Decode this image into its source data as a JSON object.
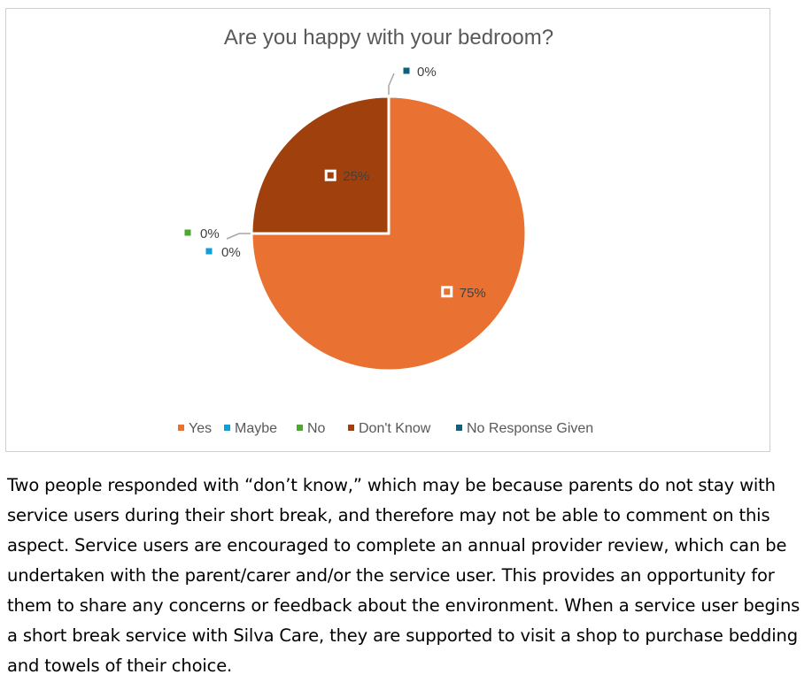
{
  "chart_data": {
    "type": "pie",
    "title": "Are you happy with your bedroom?",
    "categories": [
      "Yes",
      "Maybe",
      "No",
      "Don't Know",
      "No Response Given"
    ],
    "values": [
      75,
      0,
      0,
      25,
      0
    ],
    "labels": [
      "75%",
      "0%",
      "0%",
      "25%",
      "0%"
    ],
    "colors": [
      "#E97132",
      "#0F9ED5",
      "#4EA72E",
      "#A0410D",
      "#0E6280"
    ],
    "legend": "bottom"
  },
  "paragraph": "Two people responded with “don’t know,” which may be because parents do not stay with service users during their short break, and therefore may not be able to comment on this aspect. Service users are encouraged to complete an annual provider review, which can be undertaken with the parent/carer and/or the service user. This provides an opportunity for them to share any concerns or feedback about the environment. When a service user begins a short break service with Silva Care, they are supported to visit a shop to purchase bedding and towels of their choice."
}
